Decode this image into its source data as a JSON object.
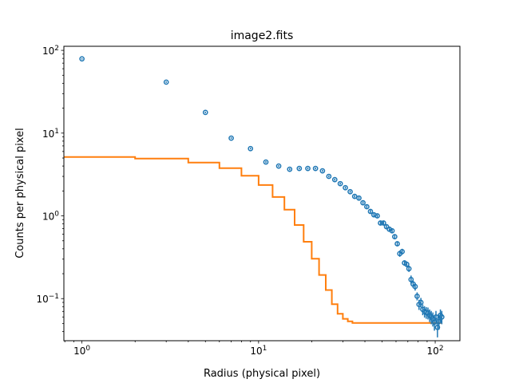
{
  "chart_data": {
    "type": "scatter",
    "title": "image2.fits",
    "xlabel": "Radius (physical pixel)",
    "ylabel": "Counts per physical pixel",
    "xscale": "log",
    "yscale": "log",
    "xlim": [
      0.79,
      138
    ],
    "ylim": [
      0.031,
      112
    ],
    "grid": false,
    "x_ticks": [
      {
        "value": 1,
        "base": "10",
        "exp": "0"
      },
      {
        "value": 10,
        "base": "10",
        "exp": "1"
      },
      {
        "value": 100,
        "base": "10",
        "exp": "2"
      }
    ],
    "y_ticks": [
      {
        "value": 0.1,
        "base": "10",
        "exp": "−1"
      },
      {
        "value": 1,
        "base": "10",
        "exp": "0"
      },
      {
        "value": 10,
        "base": "10",
        "exp": "1"
      },
      {
        "value": 100,
        "base": "10",
        "exp": "2"
      }
    ],
    "series": [
      {
        "type": "errorbar",
        "color": "#1f77b4",
        "marker": "open-circle",
        "x": [
          1,
          3,
          5,
          7,
          9,
          11,
          13,
          15,
          17,
          19,
          21,
          23,
          25,
          27,
          29,
          31,
          33,
          35,
          37,
          39,
          41,
          43,
          45,
          47,
          49,
          51,
          53,
          55,
          57,
          59,
          61,
          63,
          65,
          67,
          69,
          71,
          73,
          75,
          77,
          79,
          81,
          83,
          85,
          87,
          89,
          91,
          93,
          95,
          97,
          99,
          101,
          103,
          105,
          107,
          109
        ],
        "y": [
          78.9,
          41.3,
          17.8,
          8.7,
          6.5,
          4.47,
          4.0,
          3.66,
          3.74,
          3.74,
          3.74,
          3.5,
          3.0,
          2.74,
          2.45,
          2.19,
          1.96,
          1.72,
          1.64,
          1.44,
          1.29,
          1.13,
          1.03,
          1.0,
          0.82,
          0.82,
          0.74,
          0.69,
          0.66,
          0.56,
          0.46,
          0.35,
          0.37,
          0.27,
          0.26,
          0.23,
          0.17,
          0.15,
          0.14,
          0.107,
          0.085,
          0.09,
          0.074,
          0.07,
          0.068,
          0.067,
          0.063,
          0.06,
          0.057,
          0.052,
          0.06,
          0.045,
          0.053,
          0.063,
          0.06
        ],
        "yerr": [
          1.5,
          0.8,
          0.4,
          0.2,
          0.15,
          0.12,
          0.1,
          0.1,
          0.1,
          0.1,
          0.1,
          0.1,
          0.08,
          0.08,
          0.07,
          0.07,
          0.06,
          0.06,
          0.06,
          0.05,
          0.05,
          0.05,
          0.04,
          0.04,
          0.04,
          0.04,
          0.04,
          0.03,
          0.03,
          0.03,
          0.03,
          0.03,
          0.03,
          0.02,
          0.02,
          0.02,
          0.02,
          0.015,
          0.015,
          0.012,
          0.012,
          0.012,
          0.011,
          0.011,
          0.011,
          0.011,
          0.011,
          0.011,
          0.011,
          0.011,
          0.011,
          0.011,
          0.011,
          0.011,
          0.011
        ]
      },
      {
        "type": "step",
        "color": "#ff7f0e",
        "edges": [
          0.5,
          2,
          4,
          6,
          8,
          10,
          12,
          14,
          16,
          18,
          20,
          22,
          24,
          26,
          28,
          30,
          32,
          34,
          108
        ],
        "values": [
          5.14,
          4.92,
          4.4,
          3.77,
          3.06,
          2.36,
          1.69,
          1.19,
          0.776,
          0.486,
          0.303,
          0.193,
          0.127,
          0.0857,
          0.0657,
          0.057,
          0.053,
          0.0508
        ]
      }
    ]
  }
}
